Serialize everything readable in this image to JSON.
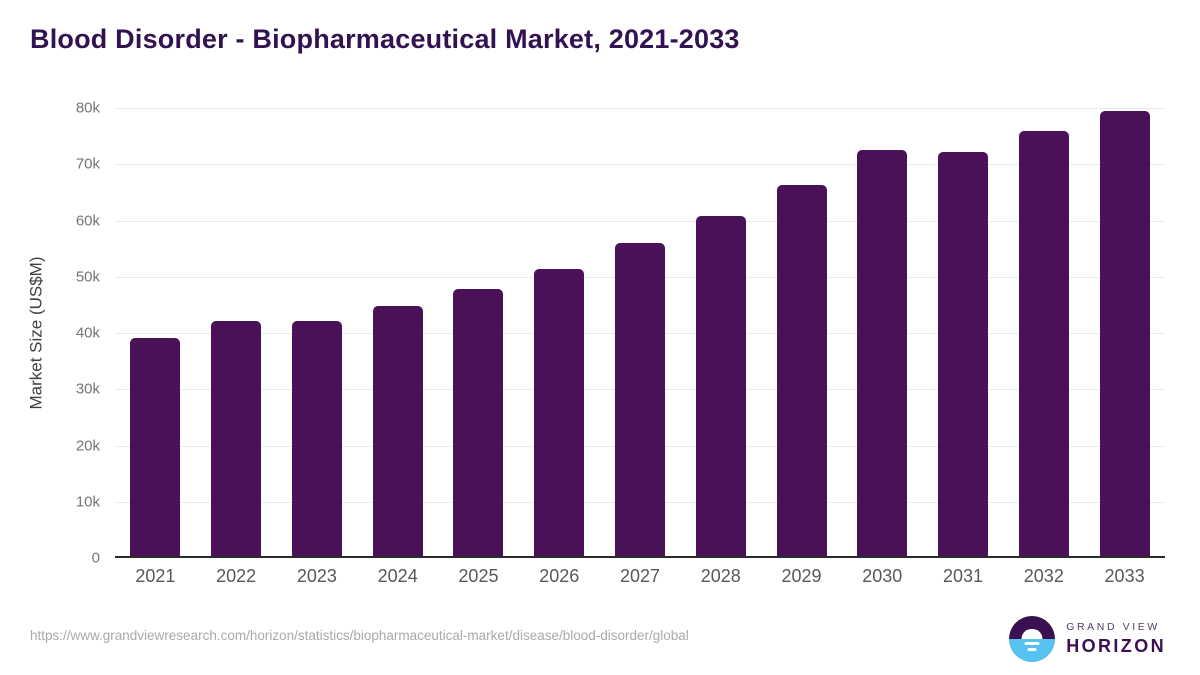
{
  "header": {
    "title": "Blood Disorder - Biopharmaceutical Market, 2021-2033"
  },
  "chart_data": {
    "type": "bar",
    "title": "Blood Disorder - Biopharmaceutical Market, 2021-2033",
    "categories": [
      "2021",
      "2022",
      "2023",
      "2024",
      "2025",
      "2026",
      "2027",
      "2028",
      "2029",
      "2030",
      "2031",
      "2032",
      "2033"
    ],
    "values": [
      39100,
      42200,
      42200,
      44800,
      47800,
      51400,
      56000,
      60800,
      66300,
      72500,
      72200,
      75900,
      79500
    ],
    "xlabel": "",
    "ylabel": "Market Size (US$M)",
    "ylim": [
      0,
      80000
    ],
    "ytick_step": 10000,
    "ytick_labels": [
      "0",
      "10k",
      "20k",
      "30k",
      "40k",
      "50k",
      "60k",
      "70k",
      "80k"
    ],
    "grid": true,
    "legend": "none",
    "bar_color": "#4a1158"
  },
  "colors": {
    "title_text": "#321252",
    "bar": "#4a1158",
    "gridline": "#e9e9e9",
    "axis_line": "#2b2b2b",
    "tick_label": "#757575",
    "x_label": "#58585a",
    "url_text": "#a9a9a9",
    "logo_purple": "#3b1053",
    "logo_blue": "#56c2f0"
  },
  "footer": {
    "source_url": "https://www.grandviewresearch.com/horizon/statistics/biopharmaceutical-market/disease/blood-disorder/global",
    "logo": {
      "line1": "GRAND VIEW",
      "line2": "HORIZON",
      "icon": "sunset-horizon-icon"
    }
  }
}
